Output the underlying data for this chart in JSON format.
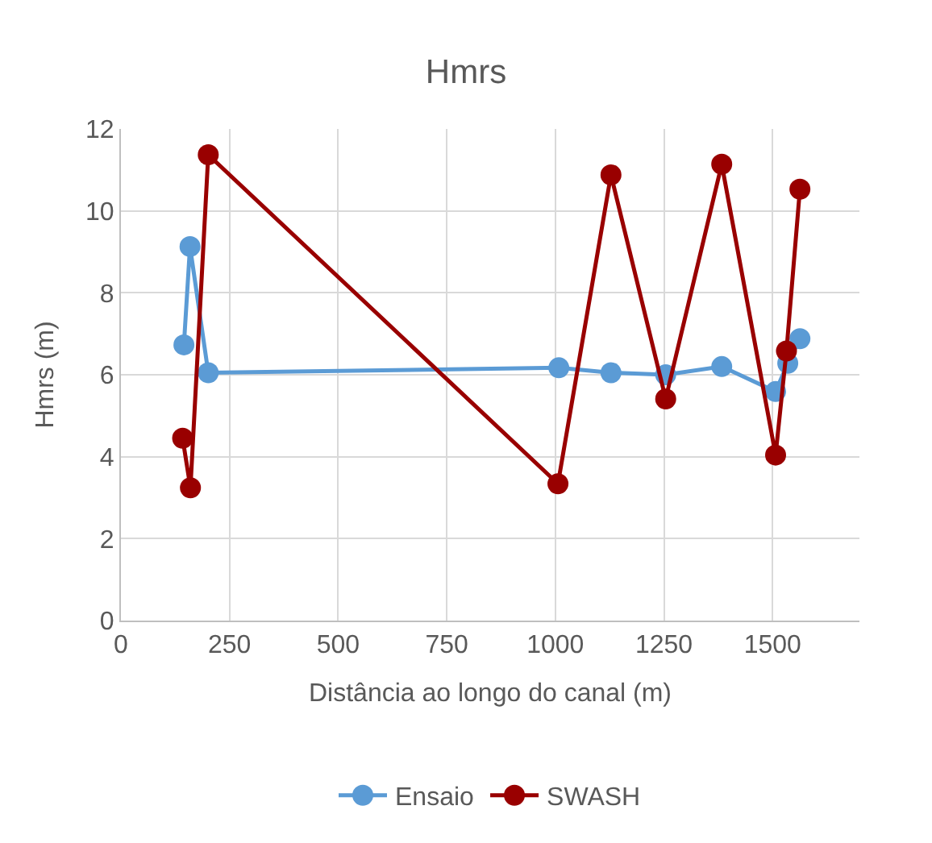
{
  "chart_data": {
    "type": "line",
    "title": "Hmrs",
    "xlabel": "Distância ao longo do canal (m)",
    "ylabel": "Hmrs (m)",
    "xlim": [
      0,
      1700
    ],
    "xticks": [
      0,
      250,
      500,
      750,
      1000,
      1250,
      1500
    ],
    "ylim": [
      0,
      12
    ],
    "yticks": [
      0,
      2,
      4,
      6,
      8,
      10,
      12
    ],
    "grid": true,
    "legend": "bottom",
    "marker": "circle",
    "line_style": "solid",
    "series": [
      {
        "name": "Ensaio",
        "color": "#5b9bd5",
        "x": [
          145,
          159,
          201,
          1008,
          1128,
          1254,
          1383,
          1507,
          1535,
          1563
        ],
        "values": [
          6.73,
          9.13,
          6.05,
          6.17,
          6.05,
          6.0,
          6.2,
          5.59,
          6.28,
          6.88
        ]
      },
      {
        "name": "SWASH",
        "color": "#990000",
        "x": [
          142,
          160,
          201,
          1006,
          1128,
          1254,
          1383,
          1507,
          1532,
          1563
        ],
        "values": [
          4.45,
          3.24,
          11.37,
          3.34,
          10.88,
          5.41,
          11.14,
          4.04,
          6.58,
          10.53
        ]
      }
    ]
  }
}
